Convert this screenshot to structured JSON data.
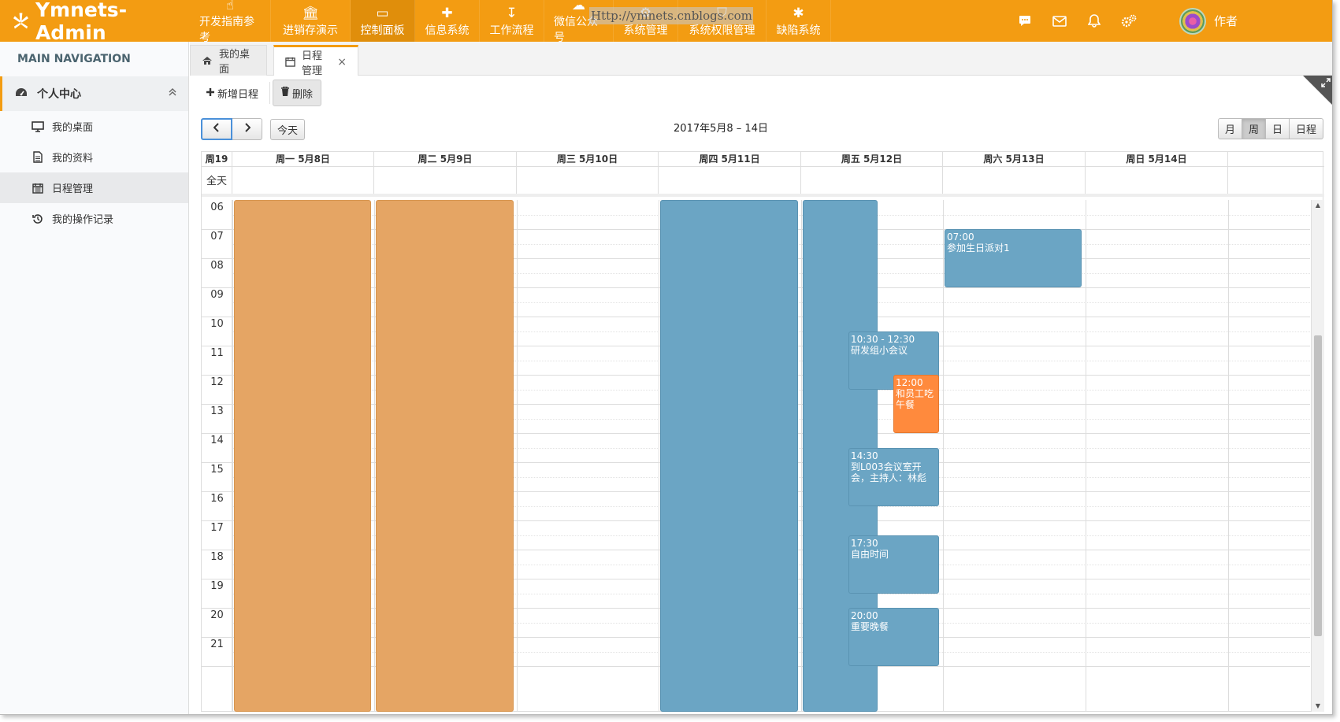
{
  "app": {
    "brand": "Ymnets-Admin",
    "watermark": "Http://ymnets.cnblogs.com",
    "user": "作者"
  },
  "topnav": [
    {
      "label": "开发指南参考",
      "icon": "hand-pointer-icon"
    },
    {
      "label": "进销存演示",
      "icon": "bank-icon"
    },
    {
      "label": "控制面板",
      "icon": "monitor-icon",
      "active": true
    },
    {
      "label": "信息系统",
      "icon": "puzzle-icon"
    },
    {
      "label": "工作流程",
      "icon": "sort-amount-icon"
    },
    {
      "label": "微信公众号",
      "icon": "cloud-icon"
    },
    {
      "label": "系统管理",
      "icon": "gear-icon"
    },
    {
      "label": "系统权限管理",
      "icon": "shield-icon"
    },
    {
      "label": "缺陷系统",
      "icon": "bug-icon"
    }
  ],
  "topright_icons": [
    "comments-icon",
    "envelope-icon",
    "bell-icon",
    "cogs-icon"
  ],
  "sidebar": {
    "header": "MAIN NAVIGATION",
    "group": {
      "label": "个人中心",
      "icon": "dashboard-icon"
    },
    "items": [
      {
        "label": "我的桌面",
        "icon": "desktop-icon"
      },
      {
        "label": "我的资料",
        "icon": "file-icon"
      },
      {
        "label": "日程管理",
        "icon": "calendar-icon",
        "selected": true
      },
      {
        "label": "我的操作记录",
        "icon": "history-icon"
      }
    ]
  },
  "tabs": [
    {
      "label": "我的桌面",
      "icon": "home-icon"
    },
    {
      "label": "日程管理",
      "icon": "calendar-icon",
      "active": true,
      "close": "×"
    }
  ],
  "toolbar": {
    "add_label": "新增日程",
    "delete_label": "删除"
  },
  "calendar": {
    "title": "2017年5月8 – 14日",
    "today_label": "今天",
    "views": [
      "月",
      "周",
      "日",
      "日程"
    ],
    "active_view": "周",
    "week_label": "周19",
    "allday_label": "全天",
    "days": [
      "周一 5月8日",
      "周二 5月9日",
      "周三 5月10日",
      "周四 5月11日",
      "周五 5月12日",
      "周六 5月13日",
      "周日 5月14日"
    ],
    "hours": [
      "06",
      "07",
      "08",
      "09",
      "10",
      "11",
      "12",
      "13",
      "14",
      "15",
      "16",
      "17",
      "18",
      "19",
      "20",
      "21"
    ],
    "colors": {
      "orange": "#e5a564",
      "blue": "#6ba5c4",
      "bright": "#ff8a3d"
    },
    "events": [
      {
        "day": 0,
        "start": 6,
        "end": 22.2,
        "color": "orange",
        "time": "",
        "title": ""
      },
      {
        "day": 1,
        "start": 6,
        "end": 22.2,
        "color": "orange",
        "time": "",
        "title": ""
      },
      {
        "day": 3,
        "start": 6,
        "end": 22.2,
        "color": "blue",
        "time": "",
        "title": ""
      },
      {
        "day": 4,
        "start": 6,
        "end": 22.2,
        "color": "blue",
        "time": "",
        "title": "",
        "col": 0
      },
      {
        "day": 5,
        "start": 7,
        "end": 9,
        "color": "blue",
        "time": "07:00",
        "title": "参加生日派对1"
      },
      {
        "day": 4,
        "start": 10.5,
        "end": 12.5,
        "color": "blue",
        "time": "10:30 - 12:30",
        "title": "研发组小会议",
        "col": 1
      },
      {
        "day": 4,
        "start": 12,
        "end": 14,
        "color": "bright",
        "time": "12:00",
        "title": "和员工吃午餐",
        "col": 2
      },
      {
        "day": 4,
        "start": 14.5,
        "end": 16.5,
        "color": "blue",
        "time": "14:30",
        "title": "到L003会议室开会，主持人：林彪",
        "col": 1
      },
      {
        "day": 4,
        "start": 17.5,
        "end": 19.5,
        "color": "blue",
        "time": "17:30",
        "title": "自由时间",
        "col": 1
      },
      {
        "day": 4,
        "start": 20,
        "end": 22,
        "color": "blue",
        "time": "20:00",
        "title": "重要晚餐",
        "col": 1
      }
    ]
  }
}
